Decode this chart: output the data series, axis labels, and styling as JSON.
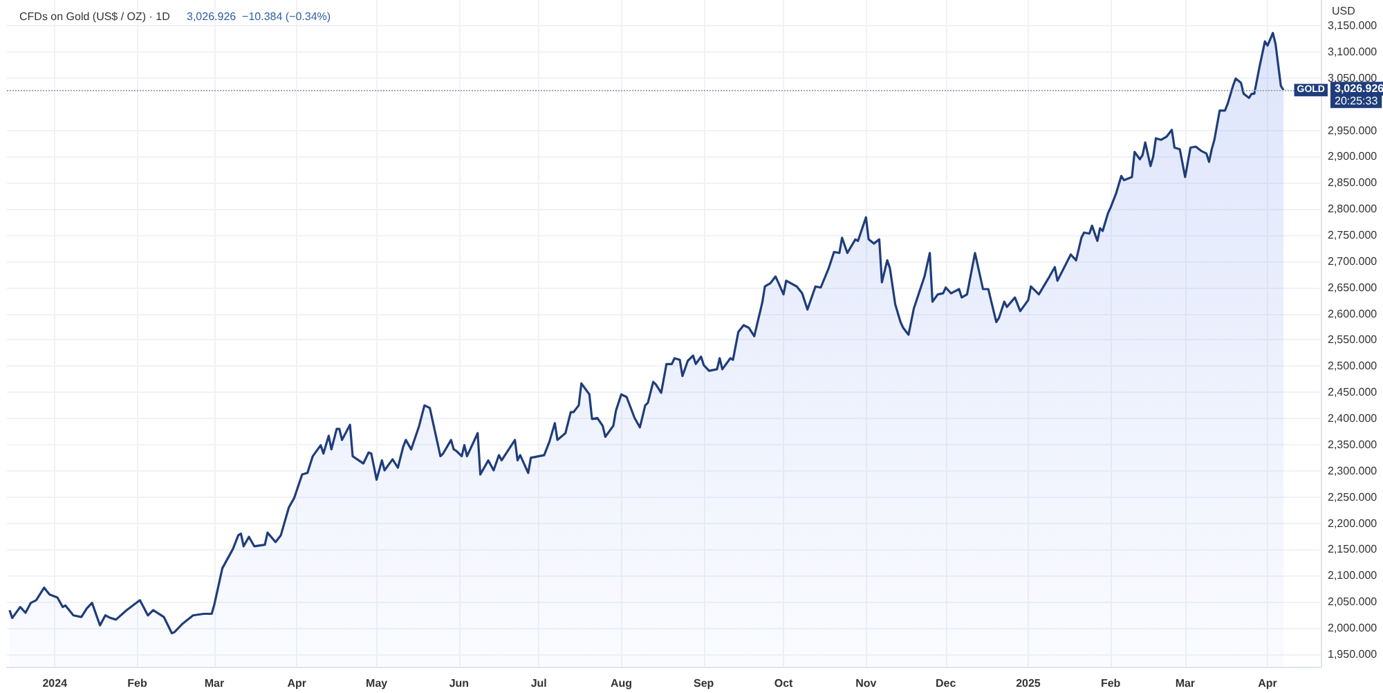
{
  "chart_data": {
    "type": "area",
    "title": "CFDs on Gold (US$ / OZ) · 1D",
    "subtitle": "3,026.926  −10.384 (−0.34%)",
    "ylabel": "USD",
    "color": "#1f3d7a",
    "grid": true,
    "x": [
      "2023-12-15",
      "2023-12-16",
      "2023-12-19",
      "2023-12-21",
      "2023-12-23",
      "2023-12-25",
      "2023-12-28",
      "2023-12-30",
      "2024-01-02",
      "2024-01-04",
      "2024-01-05",
      "2024-01-08",
      "2024-01-11",
      "2024-01-13",
      "2024-01-15",
      "2024-01-18",
      "2024-01-20",
      "2024-01-22",
      "2024-01-24",
      "2024-01-28",
      "2024-02-02",
      "2024-02-05",
      "2024-02-07",
      "2024-02-11",
      "2024-02-14",
      "2024-02-15",
      "2024-02-18",
      "2024-02-22",
      "2024-02-26",
      "2024-02-29",
      "2024-03-01",
      "2024-03-04",
      "2024-03-08",
      "2024-03-10",
      "2024-03-11",
      "2024-03-12",
      "2024-03-14",
      "2024-03-16",
      "2024-03-20",
      "2024-03-21",
      "2024-03-24",
      "2024-03-26",
      "2024-03-29",
      "2024-03-31",
      "2024-04-03",
      "2024-04-05",
      "2024-04-07",
      "2024-04-10",
      "2024-04-11",
      "2024-04-13",
      "2024-04-14",
      "2024-04-16",
      "2024-04-17",
      "2024-04-18",
      "2024-04-21",
      "2024-04-22",
      "2024-04-26",
      "2024-04-28",
      "2024-04-29",
      "2024-05-01",
      "2024-05-03",
      "2024-05-04",
      "2024-05-07",
      "2024-05-09",
      "2024-05-11",
      "2024-05-12",
      "2024-05-14",
      "2024-05-17",
      "2024-05-19",
      "2024-05-21",
      "2024-05-25",
      "2024-05-26",
      "2024-05-29",
      "2024-05-30",
      "2024-05-31",
      "2024-06-02",
      "2024-06-03",
      "2024-06-04",
      "2024-06-08",
      "2024-06-09",
      "2024-06-12",
      "2024-06-14",
      "2024-06-16",
      "2024-06-17",
      "2024-06-22",
      "2024-06-23",
      "2024-06-24",
      "2024-06-27",
      "2024-06-28",
      "2024-07-03",
      "2024-07-05",
      "2024-07-07",
      "2024-07-08",
      "2024-07-11",
      "2024-07-13",
      "2024-07-14",
      "2024-07-16",
      "2024-07-17",
      "2024-07-20",
      "2024-07-21",
      "2024-07-23",
      "2024-07-25",
      "2024-07-26",
      "2024-07-29",
      "2024-07-30",
      "2024-08-01",
      "2024-08-03",
      "2024-08-06",
      "2024-08-08",
      "2024-08-10",
      "2024-08-11",
      "2024-08-13",
      "2024-08-14",
      "2024-08-16",
      "2024-08-18",
      "2024-08-20",
      "2024-08-21",
      "2024-08-23",
      "2024-08-24",
      "2024-08-26",
      "2024-08-28",
      "2024-08-29",
      "2024-08-31",
      "2024-09-01",
      "2024-09-03",
      "2024-09-06",
      "2024-09-07",
      "2024-09-08",
      "2024-09-11",
      "2024-09-12",
      "2024-09-14",
      "2024-09-16",
      "2024-09-18",
      "2024-09-20",
      "2024-09-23",
      "2024-09-24",
      "2024-09-26",
      "2024-09-28",
      "2024-09-29",
      "2024-10-01",
      "2024-10-02",
      "2024-10-06",
      "2024-10-08",
      "2024-10-10",
      "2024-10-13",
      "2024-10-15",
      "2024-10-18",
      "2024-10-20",
      "2024-10-22",
      "2024-10-23",
      "2024-10-25",
      "2024-10-28",
      "2024-10-29",
      "2024-11-01",
      "2024-11-02",
      "2024-11-04",
      "2024-11-06",
      "2024-11-07",
      "2024-11-09",
      "2024-11-10",
      "2024-11-12",
      "2024-11-14",
      "2024-11-15",
      "2024-11-17",
      "2024-11-19",
      "2024-11-23",
      "2024-11-25",
      "2024-11-26",
      "2024-11-28",
      "2024-11-30",
      "2024-12-01",
      "2024-12-03",
      "2024-12-06",
      "2024-12-07",
      "2024-12-09",
      "2024-12-12",
      "2024-12-15",
      "2024-12-17",
      "2024-12-20",
      "2024-12-21",
      "2024-12-23",
      "2024-12-24",
      "2024-12-27",
      "2024-12-29",
      "2025-01-01",
      "2025-01-02",
      "2025-01-05",
      "2025-01-09",
      "2025-01-11",
      "2025-01-12",
      "2025-01-17",
      "2025-01-19",
      "2025-01-21",
      "2025-01-22",
      "2025-01-24",
      "2025-01-25",
      "2025-01-27",
      "2025-01-28",
      "2025-01-29",
      "2025-01-31",
      "2025-02-01",
      "2025-02-03",
      "2025-02-05",
      "2025-02-06",
      "2025-02-09",
      "2025-02-10",
      "2025-02-12",
      "2025-02-13",
      "2025-02-14",
      "2025-02-16",
      "2025-02-17",
      "2025-02-18",
      "2025-02-20",
      "2025-02-22",
      "2025-02-24",
      "2025-02-25",
      "2025-02-27",
      "2025-03-01",
      "2025-03-03",
      "2025-03-05",
      "2025-03-07",
      "2025-03-09",
      "2025-03-10",
      "2025-03-11",
      "2025-03-12",
      "2025-03-14",
      "2025-03-16",
      "2025-03-17",
      "2025-03-19",
      "2025-03-20",
      "2025-03-22",
      "2025-03-23",
      "2025-03-25",
      "2025-03-26",
      "2025-03-27",
      "2025-03-29",
      "2025-03-31",
      "2025-04-01",
      "2025-04-03",
      "2025-04-04",
      "2025-04-06",
      "2025-04-07"
    ],
    "values": [
      2034,
      2019,
      2040,
      2029,
      2048,
      2053,
      2077,
      2064,
      2058,
      2040,
      2043,
      2024,
      2021,
      2037,
      2048,
      2005,
      2024,
      2019,
      2016,
      2034,
      2053,
      2024,
      2034,
      2021,
      1990,
      1992,
      2008,
      2024,
      2027,
      2027,
      2045,
      2114,
      2151,
      2177,
      2180,
      2156,
      2174,
      2156,
      2159,
      2182,
      2164,
      2177,
      2230,
      2248,
      2293,
      2296,
      2328,
      2349,
      2333,
      2367,
      2341,
      2380,
      2380,
      2359,
      2388,
      2328,
      2314,
      2335,
      2333,
      2283,
      2320,
      2301,
      2322,
      2306,
      2346,
      2359,
      2341,
      2386,
      2425,
      2420,
      2328,
      2333,
      2359,
      2341,
      2338,
      2328,
      2349,
      2328,
      2372,
      2293,
      2320,
      2301,
      2330,
      2320,
      2359,
      2320,
      2330,
      2296,
      2325,
      2330,
      2356,
      2391,
      2359,
      2372,
      2412,
      2412,
      2425,
      2467,
      2446,
      2399,
      2401,
      2386,
      2365,
      2386,
      2415,
      2446,
      2441,
      2401,
      2383,
      2425,
      2430,
      2470,
      2465,
      2449,
      2504,
      2504,
      2515,
      2512,
      2481,
      2510,
      2520,
      2504,
      2518,
      2502,
      2491,
      2494,
      2515,
      2494,
      2515,
      2512,
      2565,
      2578,
      2573,
      2557,
      2621,
      2652,
      2658,
      2671,
      2660,
      2637,
      2663,
      2652,
      2639,
      2608,
      2652,
      2650,
      2687,
      2718,
      2716,
      2745,
      2716,
      2742,
      2739,
      2784,
      2742,
      2734,
      2742,
      2660,
      2702,
      2687,
      2618,
      2584,
      2573,
      2560,
      2610,
      2671,
      2716,
      2623,
      2637,
      2639,
      2650,
      2639,
      2647,
      2631,
      2637,
      2716,
      2647,
      2647,
      2584,
      2592,
      2623,
      2613,
      2631,
      2605,
      2626,
      2652,
      2637,
      2671,
      2689,
      2663,
      2713,
      2702,
      2745,
      2755,
      2753,
      2768,
      2739,
      2763,
      2758,
      2792,
      2803,
      2829,
      2863,
      2855,
      2861,
      2909,
      2895,
      2903,
      2927,
      2882,
      2900,
      2935,
      2932,
      2938,
      2951,
      2917,
      2914,
      2861,
      2917,
      2919,
      2911,
      2906,
      2890,
      2914,
      2932,
      2988,
      2988,
      3001,
      3035,
      3049,
      3041,
      3020,
      3012,
      3020,
      3020,
      3072,
      3120,
      3112,
      3136,
      3115,
      3035,
      3027
    ],
    "xlim": [
      "2023-12-14",
      "2025-04-21"
    ],
    "xticks": [
      {
        "value": "2024-01-01",
        "label": "2024"
      },
      {
        "value": "2024-02-01",
        "label": "Feb"
      },
      {
        "value": "2024-03-01",
        "label": "Mar"
      },
      {
        "value": "2024-04-01",
        "label": "Apr"
      },
      {
        "value": "2024-05-01",
        "label": "May"
      },
      {
        "value": "2024-06-01",
        "label": "Jun"
      },
      {
        "value": "2024-07-01",
        "label": "Jul"
      },
      {
        "value": "2024-08-01",
        "label": "Aug"
      },
      {
        "value": "2024-09-01",
        "label": "Sep"
      },
      {
        "value": "2024-10-01",
        "label": "Oct"
      },
      {
        "value": "2024-11-01",
        "label": "Nov"
      },
      {
        "value": "2024-12-01",
        "label": "Dec"
      },
      {
        "value": "2025-01-01",
        "label": "2025"
      },
      {
        "value": "2025-02-01",
        "label": "Feb"
      },
      {
        "value": "2025-03-01",
        "label": "Mar"
      },
      {
        "value": "2025-04-01",
        "label": "Apr"
      }
    ],
    "ylim": [
      1926,
      3199
    ],
    "yticks": [
      {
        "value": 1950,
        "label": "1,950.000"
      },
      {
        "value": 2000,
        "label": "2,000.000"
      },
      {
        "value": 2050,
        "label": "2,050.000"
      },
      {
        "value": 2100,
        "label": "2,100.000"
      },
      {
        "value": 2150,
        "label": "2,150.000"
      },
      {
        "value": 2200,
        "label": "2,200.000"
      },
      {
        "value": 2250,
        "label": "2,250.000"
      },
      {
        "value": 2300,
        "label": "2,300.000"
      },
      {
        "value": 2350,
        "label": "2,350.000"
      },
      {
        "value": 2400,
        "label": "2,400.000"
      },
      {
        "value": 2450,
        "label": "2,450.000"
      },
      {
        "value": 2500,
        "label": "2,500.000"
      },
      {
        "value": 2550,
        "label": "2,550.000"
      },
      {
        "value": 2600,
        "label": "2,600.000"
      },
      {
        "value": 2650,
        "label": "2,650.000"
      },
      {
        "value": 2700,
        "label": "2,700.000"
      },
      {
        "value": 2750,
        "label": "2,750.000"
      },
      {
        "value": 2800,
        "label": "2,800.000"
      },
      {
        "value": 2850,
        "label": "2,850.000"
      },
      {
        "value": 2900,
        "label": "2,900.000"
      },
      {
        "value": 2950,
        "label": "2,950.000"
      },
      {
        "value": 3050,
        "label": "3,050.000"
      },
      {
        "value": 3100,
        "label": "3,100.000"
      },
      {
        "value": 3150,
        "label": "3,150.000"
      }
    ],
    "ref_lines": [
      {
        "axis": "y",
        "value": 3026.926,
        "label": "GOLD",
        "color": "#9aa7bd",
        "line_style": "dotted"
      }
    ],
    "annotations": [
      "3,026.926",
      "20:25:33"
    ]
  }
}
